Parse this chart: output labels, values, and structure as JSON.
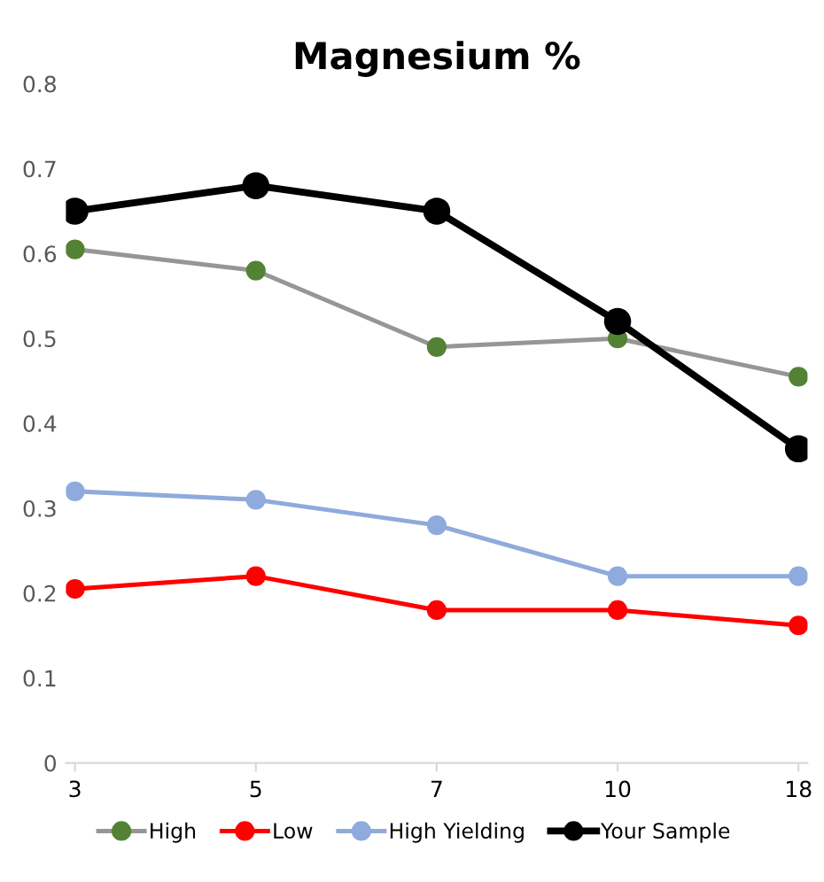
{
  "chart_data": {
    "type": "line",
    "title": "Magnesium %",
    "categories": [
      "3",
      "5",
      "7",
      "10",
      "18"
    ],
    "series": [
      {
        "name": "High",
        "color": "#969696",
        "colors": [
          "#548235",
          "#548235",
          "#548235",
          "#548235",
          "#548235"
        ],
        "values": [
          0.605,
          0.58,
          0.49,
          0.5,
          0.455
        ]
      },
      {
        "name": "Low",
        "color": "#ff0000",
        "values": [
          0.205,
          0.22,
          0.18,
          0.18,
          0.162
        ]
      },
      {
        "name": "High Yielding",
        "color": "#8faadc",
        "values": [
          0.32,
          0.31,
          0.28,
          0.22,
          0.22
        ]
      },
      {
        "name": "Your Sample",
        "color": "#000000",
        "values": [
          0.65,
          0.68,
          0.65,
          0.52,
          0.37
        ]
      }
    ],
    "ylim": [
      0,
      0.8
    ],
    "yticks": [
      0,
      0.1,
      0.2,
      0.3,
      0.4,
      0.5,
      0.6,
      0.7,
      0.8
    ],
    "grid": false,
    "legend": "bottom",
    "marker": "circle",
    "line_style": "solid"
  }
}
